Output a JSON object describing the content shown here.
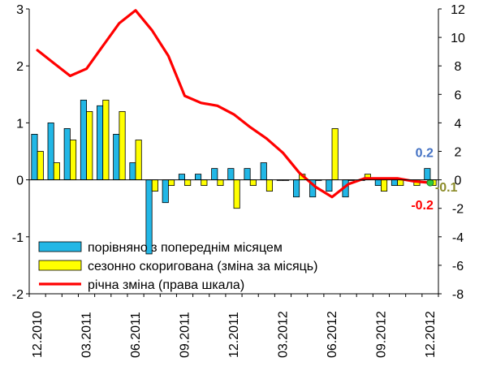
{
  "chart_data": {
    "type": "bar",
    "categories": [
      "12.2010",
      "01.2011",
      "02.2011",
      "03.2011",
      "04.2011",
      "05.2011",
      "06.2011",
      "07.2011",
      "08.2011",
      "09.2011",
      "10.2011",
      "11.2011",
      "12.2011",
      "01.2012",
      "02.2012",
      "03.2012",
      "04.2012",
      "05.2012",
      "06.2012",
      "07.2012",
      "08.2012",
      "09.2012",
      "10.2012",
      "11.2012",
      "12.2012"
    ],
    "x_tick_labels": [
      "12.2010",
      "03.2011",
      "06.2011",
      "09.2011",
      "12.2011",
      "03.2012",
      "06.2012",
      "09.2012",
      "12.2012"
    ],
    "series": [
      {
        "name": "порівняно з попереднім місяцем",
        "kind": "bar",
        "axis": "left",
        "color": "#22b7e6",
        "values": [
          0.8,
          1.0,
          0.9,
          1.4,
          1.3,
          0.8,
          0.3,
          -1.3,
          -0.4,
          0.1,
          0.1,
          0.2,
          0.2,
          0.2,
          0.3,
          0.0,
          -0.3,
          -0.3,
          -0.2,
          -0.3,
          0.0,
          -0.1,
          -0.1,
          0.0,
          0.2
        ]
      },
      {
        "name": "сезонно скоригована (зміна за місяць)",
        "kind": "bar",
        "axis": "left",
        "color": "#ffff00",
        "values": [
          0.5,
          0.3,
          0.7,
          1.2,
          1.4,
          1.2,
          0.7,
          -0.2,
          -0.1,
          -0.1,
          -0.1,
          -0.1,
          -0.5,
          -0.1,
          -0.2,
          0.0,
          0.1,
          0.0,
          0.9,
          0.0,
          0.1,
          -0.2,
          -0.1,
          -0.1,
          -0.1
        ]
      },
      {
        "name": "річна зміна (права шкала)",
        "kind": "line",
        "axis": "right",
        "color": "#ff0000",
        "values": [
          9.1,
          8.2,
          7.3,
          7.8,
          9.4,
          11.0,
          11.9,
          10.5,
          8.7,
          5.9,
          5.4,
          5.2,
          4.6,
          3.7,
          2.9,
          1.9,
          0.5,
          -0.5,
          -1.2,
          -0.3,
          0.1,
          0.1,
          0.1,
          -0.1,
          -0.2
        ]
      }
    ],
    "left_axis": {
      "min": -2,
      "max": 3,
      "ticks": [
        -2,
        -1,
        0,
        1,
        2,
        3
      ],
      "tick_labels": [
        "-2",
        "-1",
        "0",
        "1",
        "2",
        "3"
      ]
    },
    "right_axis": {
      "min": -8,
      "max": 12,
      "ticks": [
        -8,
        -6,
        -4,
        -2,
        0,
        2,
        4,
        6,
        8,
        10,
        12
      ],
      "tick_labels": [
        "-8",
        "-6",
        "-4",
        "-2",
        "0",
        "2",
        "4",
        "6",
        "8",
        "10",
        "12"
      ]
    },
    "annotations": [
      {
        "text": "0.2",
        "color": "#4472c4"
      },
      {
        "text": "-0.1",
        "color": "#8c8c2a"
      },
      {
        "text": "-0.2",
        "color": "#ff0000"
      }
    ],
    "end_marker_color": "#2ecc40",
    "grid": false,
    "legend_placement": "bottom-left"
  }
}
